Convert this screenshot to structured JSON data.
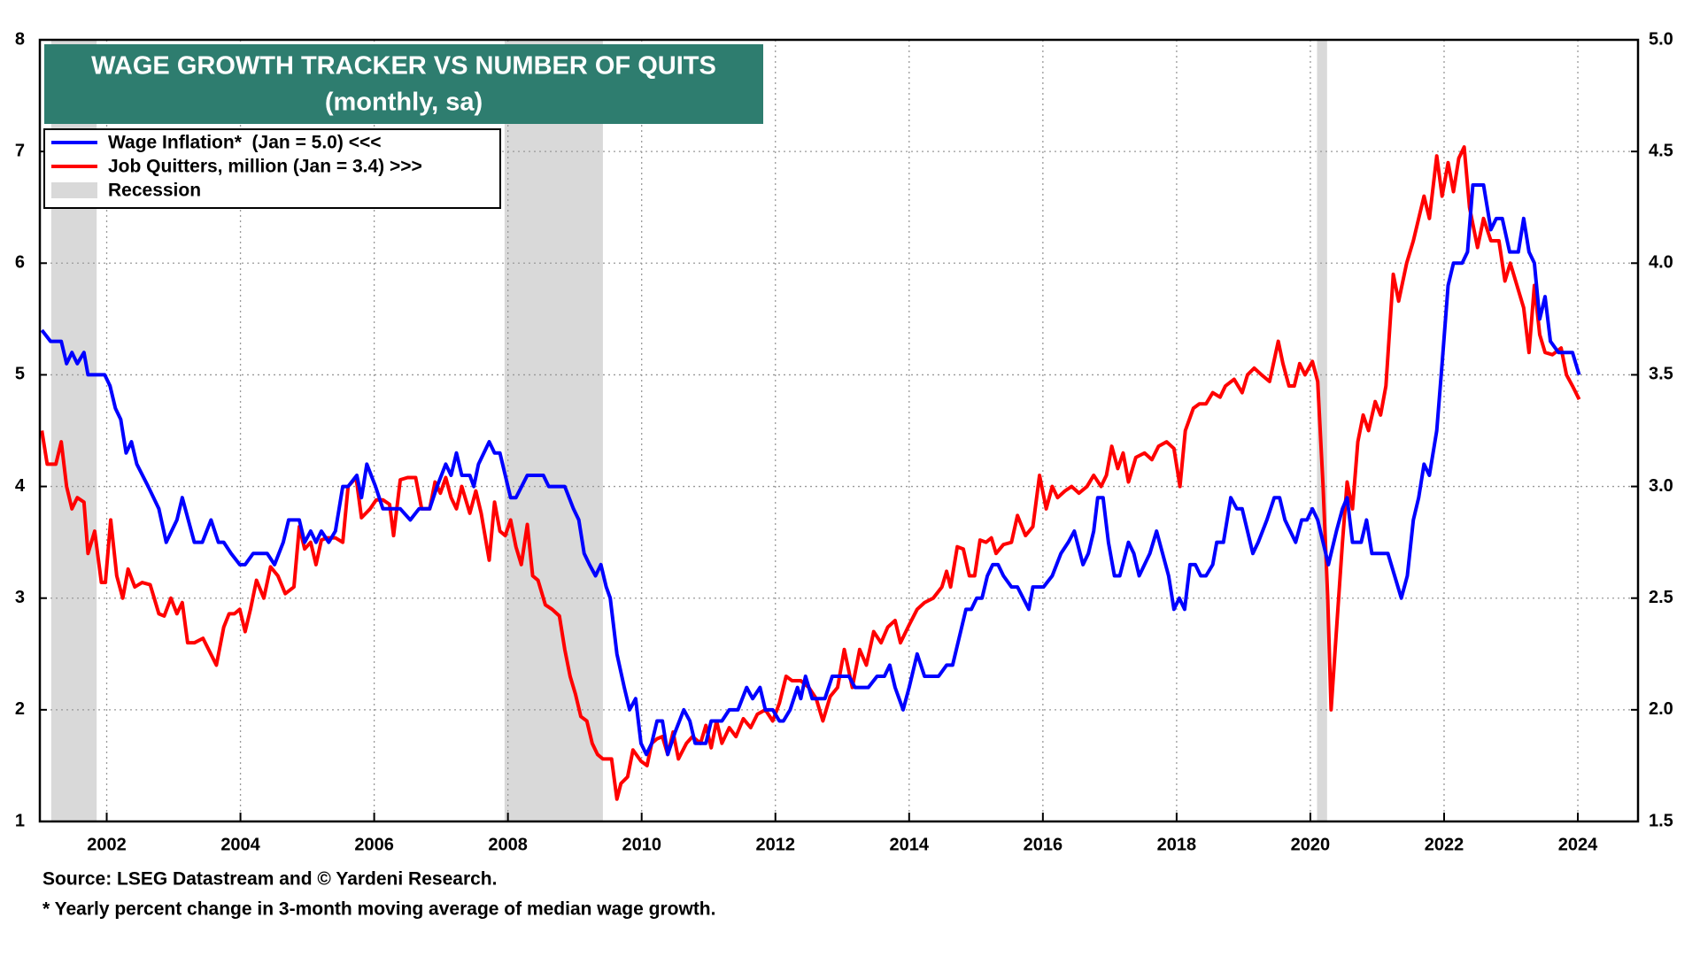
{
  "chart_data": {
    "type": "line",
    "title": "WAGE GROWTH TRACKER VS NUMBER OF QUITS",
    "subtitle": "(monthly, sa)",
    "source": "Source: LSEG Datastream and © Yardeni Research.",
    "footnote": "* Yearly percent change in 3-month moving average of median wage growth.",
    "xlim": [
      2001,
      2024.9
    ],
    "xticks": [
      2002,
      2004,
      2006,
      2008,
      2010,
      2012,
      2014,
      2016,
      2018,
      2020,
      2022,
      2024
    ],
    "ylim": [
      1,
      8
    ],
    "yticks": [
      1,
      2,
      3,
      4,
      5,
      6,
      7,
      8
    ],
    "y2lim": [
      1.5,
      5
    ],
    "y2ticks": [
      {
        "value": 1.5,
        "label": "1.5"
      },
      {
        "value": 2,
        "label": "2.0"
      },
      {
        "value": 2.5,
        "label": "2.5"
      },
      {
        "value": 3,
        "label": "3.0"
      },
      {
        "value": 3.5,
        "label": "3.5"
      },
      {
        "value": 4,
        "label": "4.0"
      },
      {
        "value": 4.5,
        "label": "4.5"
      },
      {
        "value": 5,
        "label": "5.0"
      }
    ],
    "grid": true,
    "legend": "upper left",
    "recessions": {
      "name": "Recession",
      "color": "#d9d9d9",
      "ranges": [
        [
          2001.17,
          2001.85
        ],
        [
          2007.95,
          2009.42
        ],
        [
          2020.1,
          2020.25
        ]
      ]
    },
    "series": [
      {
        "name": "Wage Inflation*  (Jan = 5.0) <<<",
        "color": "#0000ff",
        "axis": "y",
        "x": [
          2001.03,
          2001.16,
          2001.32,
          2001.4,
          2001.48,
          2001.56,
          2001.66,
          2001.72,
          2001.97,
          2002.05,
          2002.13,
          2002.21,
          2002.29,
          2002.37,
          2002.45,
          2002.62,
          2002.78,
          2002.89,
          2003.05,
          2003.13,
          2003.31,
          2003.43,
          2003.56,
          2003.67,
          2003.75,
          2003.86,
          2003.99,
          2004.07,
          2004.19,
          2004.4,
          2004.51,
          2004.64,
          2004.72,
          2004.88,
          2004.96,
          2005.05,
          2005.13,
          2005.21,
          2005.32,
          2005.42,
          2005.53,
          2005.61,
          2005.74,
          2005.81,
          2005.89,
          2006.02,
          2006.13,
          2006.26,
          2006.39,
          2006.54,
          2006.67,
          2006.83,
          2006.94,
          2007.07,
          2007.15,
          2007.23,
          2007.31,
          2007.43,
          2007.49,
          2007.56,
          2007.72,
          2007.8,
          2007.88,
          2008.04,
          2008.12,
          2008.29,
          2008.53,
          2008.61,
          2008.85,
          2008.98,
          2009.06,
          2009.14,
          2009.22,
          2009.31,
          2009.39,
          2009.47,
          2009.53,
          2009.63,
          2009.74,
          2009.82,
          2009.91,
          2009.99,
          2010.07,
          2010.15,
          2010.23,
          2010.31,
          2010.39,
          2010.5,
          2010.63,
          2010.72,
          2010.8,
          2010.96,
          2011.04,
          2011.2,
          2011.31,
          2011.44,
          2011.57,
          2011.66,
          2011.77,
          2011.85,
          2011.96,
          2012.06,
          2012.12,
          2012.22,
          2012.33,
          2012.38,
          2012.45,
          2012.55,
          2012.74,
          2012.85,
          2012.98,
          2013.1,
          2013.19,
          2013.39,
          2013.52,
          2013.63,
          2013.71,
          2013.79,
          2013.91,
          2014,
          2014.12,
          2014.23,
          2014.44,
          2014.56,
          2014.65,
          2014.77,
          2014.85,
          2014.93,
          2015.01,
          2015.09,
          2015.17,
          2015.25,
          2015.33,
          2015.41,
          2015.53,
          2015.62,
          2015.79,
          2015.85,
          2016.01,
          2016.14,
          2016.27,
          2016.38,
          2016.47,
          2016.6,
          2016.68,
          2016.76,
          2016.82,
          2016.9,
          2016.98,
          2017.07,
          2017.15,
          2017.28,
          2017.36,
          2017.44,
          2017.6,
          2017.7,
          2017.88,
          2017.96,
          2018.04,
          2018.12,
          2018.2,
          2018.28,
          2018.36,
          2018.44,
          2018.54,
          2018.6,
          2018.7,
          2018.81,
          2018.9,
          2018.98,
          2019.14,
          2019.22,
          2019.35,
          2019.46,
          2019.54,
          2019.62,
          2019.78,
          2019.87,
          2019.95,
          2020.03,
          2020.11,
          2020.19,
          2020.27,
          2020.39,
          2020.48,
          2020.55,
          2020.63,
          2020.76,
          2020.84,
          2020.92,
          2021.16,
          2021.26,
          2021.36,
          2021.45,
          2021.54,
          2021.62,
          2021.7,
          2021.78,
          2021.89,
          2021.97,
          2022.06,
          2022.14,
          2022.27,
          2022.35,
          2022.43,
          2022.59,
          2022.7,
          2022.78,
          2022.87,
          2022.98,
          2023.11,
          2023.19,
          2023.27,
          2023.35,
          2023.43,
          2023.51,
          2023.59,
          2023.71,
          2023.92,
          2024.02
        ],
        "values": [
          5.4,
          5.3,
          5.3,
          5.1,
          5.2,
          5.1,
          5.2,
          5.0,
          5.0,
          4.9,
          4.7,
          4.6,
          4.3,
          4.4,
          4.2,
          4.0,
          3.8,
          3.5,
          3.7,
          3.9,
          3.5,
          3.5,
          3.7,
          3.5,
          3.5,
          3.4,
          3.3,
          3.3,
          3.4,
          3.4,
          3.3,
          3.5,
          3.7,
          3.7,
          3.5,
          3.6,
          3.5,
          3.6,
          3.5,
          3.6,
          4.0,
          4.0,
          4.1,
          3.9,
          4.2,
          4.0,
          3.8,
          3.8,
          3.8,
          3.7,
          3.8,
          3.8,
          4.0,
          4.2,
          4.1,
          4.3,
          4.1,
          4.1,
          4.0,
          4.2,
          4.4,
          4.3,
          4.3,
          3.9,
          3.9,
          4.1,
          4.1,
          4.0,
          4.0,
          3.8,
          3.7,
          3.4,
          3.3,
          3.2,
          3.3,
          3.1,
          3.0,
          2.5,
          2.2,
          2.0,
          2.1,
          1.7,
          1.6,
          1.7,
          1.9,
          1.9,
          1.6,
          1.8,
          2.0,
          1.9,
          1.7,
          1.7,
          1.9,
          1.9,
          2.0,
          2.0,
          2.2,
          2.1,
          2.2,
          2.0,
          2.0,
          1.9,
          1.9,
          2.0,
          2.2,
          2.1,
          2.3,
          2.1,
          2.1,
          2.3,
          2.3,
          2.3,
          2.2,
          2.2,
          2.3,
          2.3,
          2.4,
          2.2,
          2.0,
          2.2,
          2.5,
          2.3,
          2.3,
          2.4,
          2.4,
          2.7,
          2.9,
          2.9,
          3.0,
          3.0,
          3.2,
          3.3,
          3.3,
          3.2,
          3.1,
          3.1,
          2.9,
          3.1,
          3.1,
          3.2,
          3.4,
          3.5,
          3.6,
          3.3,
          3.4,
          3.6,
          3.9,
          3.9,
          3.5,
          3.2,
          3.2,
          3.5,
          3.4,
          3.2,
          3.4,
          3.6,
          3.2,
          2.9,
          3.0,
          2.9,
          3.3,
          3.3,
          3.2,
          3.2,
          3.3,
          3.5,
          3.5,
          3.9,
          3.8,
          3.8,
          3.4,
          3.5,
          3.7,
          3.9,
          3.9,
          3.7,
          3.5,
          3.7,
          3.7,
          3.8,
          3.7,
          3.5,
          3.3,
          3.6,
          3.8,
          3.9,
          3.5,
          3.5,
          3.7,
          3.4,
          3.4,
          3.2,
          3.0,
          3.2,
          3.7,
          3.9,
          4.2,
          4.1,
          4.5,
          5.1,
          5.8,
          6.0,
          6.0,
          6.1,
          6.7,
          6.7,
          6.3,
          6.4,
          6.4,
          6.1,
          6.1,
          6.4,
          6.1,
          6.0,
          5.5,
          5.7,
          5.3,
          5.2,
          5.2,
          5.0
        ]
      },
      {
        "name": "Job Quitters, million (Jan = 3.4) >>>",
        "color": "#ff0000",
        "axis": "y2",
        "x": [
          2001.03,
          2001.11,
          2001.24,
          2001.32,
          2001.4,
          2001.48,
          2001.56,
          2001.66,
          2001.72,
          2001.82,
          2001.92,
          2001.98,
          2002.06,
          2002.15,
          2002.24,
          2002.32,
          2002.42,
          2002.53,
          2002.65,
          2002.78,
          2002.86,
          2002.96,
          2003.05,
          2003.13,
          2003.21,
          2003.31,
          2003.44,
          2003.54,
          2003.64,
          2003.75,
          2003.83,
          2003.91,
          2003.99,
          2004.07,
          2004.15,
          2004.24,
          2004.35,
          2004.45,
          2004.56,
          2004.67,
          2004.8,
          2004.88,
          2004.96,
          2005.05,
          2005.13,
          2005.21,
          2005.29,
          2005.42,
          2005.53,
          2005.61,
          2005.73,
          2005.81,
          2005.94,
          2006.03,
          2006.13,
          2006.23,
          2006.29,
          2006.39,
          2006.5,
          2006.62,
          2006.71,
          2006.83,
          2006.91,
          2006.99,
          2007.07,
          2007.15,
          2007.23,
          2007.31,
          2007.43,
          2007.52,
          2007.6,
          2007.72,
          2007.8,
          2007.88,
          2007.96,
          2008.04,
          2008.12,
          2008.2,
          2008.29,
          2008.37,
          2008.45,
          2008.56,
          2008.66,
          2008.77,
          2008.85,
          2008.93,
          2009.01,
          2009.09,
          2009.18,
          2009.26,
          2009.34,
          2009.42,
          2009.55,
          2009.63,
          2009.69,
          2009.79,
          2009.87,
          2009.99,
          2010.08,
          2010.15,
          2010.23,
          2010.31,
          2010.39,
          2010.47,
          2010.55,
          2010.67,
          2010.76,
          2010.88,
          2010.96,
          2011.04,
          2011.12,
          2011.2,
          2011.31,
          2011.41,
          2011.52,
          2011.63,
          2011.73,
          2011.85,
          2011.96,
          2012.06,
          2012.16,
          2012.25,
          2012.38,
          2012.5,
          2012.61,
          2012.71,
          2012.82,
          2012.93,
          2013.03,
          2013.15,
          2013.26,
          2013.36,
          2013.47,
          2013.58,
          2013.68,
          2013.79,
          2013.87,
          2014,
          2014.12,
          2014.23,
          2014.36,
          2014.49,
          2014.56,
          2014.62,
          2014.72,
          2014.81,
          2014.9,
          2014.98,
          2015.06,
          2015.15,
          2015.23,
          2015.3,
          2015.41,
          2015.53,
          2015.62,
          2015.74,
          2015.85,
          2015.95,
          2016.05,
          2016.14,
          2016.22,
          2016.33,
          2016.43,
          2016.54,
          2016.66,
          2016.76,
          2016.87,
          2016.95,
          2017.03,
          2017.12,
          2017.2,
          2017.28,
          2017.39,
          2017.52,
          2017.63,
          2017.73,
          2017.85,
          2017.96,
          2018.05,
          2018.13,
          2018.25,
          2018.34,
          2018.44,
          2018.54,
          2018.65,
          2018.73,
          2018.86,
          2018.98,
          2019.06,
          2019.16,
          2019.27,
          2019.39,
          2019.52,
          2019.59,
          2019.68,
          2019.76,
          2019.84,
          2019.92,
          2020.03,
          2020.11,
          2020.19,
          2020.26,
          2020.31,
          2020.4,
          2020.48,
          2020.55,
          2020.63,
          2020.71,
          2020.79,
          2020.87,
          2020.97,
          2021.05,
          2021.13,
          2021.24,
          2021.32,
          2021.44,
          2021.54,
          2021.62,
          2021.7,
          2021.78,
          2021.89,
          2021.97,
          2022.06,
          2022.14,
          2022.22,
          2022.3,
          2022.38,
          2022.5,
          2022.59,
          2022.7,
          2022.82,
          2022.91,
          2022.99,
          2023.11,
          2023.19,
          2023.27,
          2023.35,
          2023.43,
          2023.51,
          2023.62,
          2023.75,
          2023.83,
          2023.92,
          2024.02
        ],
        "values": [
          3.25,
          3.1,
          3.1,
          3.2,
          3.0,
          2.9,
          2.95,
          2.93,
          2.7,
          2.8,
          2.57,
          2.57,
          2.85,
          2.6,
          2.5,
          2.63,
          2.55,
          2.57,
          2.56,
          2.43,
          2.42,
          2.5,
          2.43,
          2.48,
          2.3,
          2.3,
          2.32,
          2.26,
          2.2,
          2.37,
          2.43,
          2.43,
          2.45,
          2.35,
          2.45,
          2.58,
          2.5,
          2.64,
          2.6,
          2.52,
          2.55,
          2.82,
          2.72,
          2.75,
          2.65,
          2.76,
          2.77,
          2.77,
          2.75,
          3.0,
          3.04,
          2.86,
          2.9,
          2.94,
          2.94,
          2.92,
          2.78,
          3.03,
          3.04,
          3.04,
          2.9,
          2.9,
          3.02,
          2.97,
          3.04,
          2.95,
          2.9,
          3.0,
          2.88,
          2.98,
          2.88,
          2.67,
          2.93,
          2.8,
          2.78,
          2.85,
          2.73,
          2.65,
          2.83,
          2.6,
          2.58,
          2.47,
          2.45,
          2.42,
          2.27,
          2.15,
          2.07,
          1.97,
          1.95,
          1.85,
          1.8,
          1.78,
          1.78,
          1.6,
          1.67,
          1.7,
          1.82,
          1.77,
          1.75,
          1.85,
          1.87,
          1.88,
          1.8,
          1.9,
          1.78,
          1.85,
          1.88,
          1.85,
          1.93,
          1.83,
          1.95,
          1.85,
          1.92,
          1.88,
          1.96,
          1.92,
          1.98,
          2.0,
          1.95,
          2.03,
          2.15,
          2.13,
          2.13,
          2.1,
          2.05,
          1.95,
          2.06,
          2.1,
          2.27,
          2.1,
          2.27,
          2.2,
          2.35,
          2.3,
          2.37,
          2.4,
          2.3,
          2.38,
          2.45,
          2.48,
          2.5,
          2.55,
          2.62,
          2.55,
          2.73,
          2.72,
          2.6,
          2.6,
          2.76,
          2.75,
          2.77,
          2.7,
          2.74,
          2.75,
          2.87,
          2.78,
          2.82,
          3.05,
          2.9,
          3.0,
          2.95,
          2.98,
          3.0,
          2.97,
          3.0,
          3.05,
          3.0,
          3.05,
          3.18,
          3.08,
          3.15,
          3.02,
          3.13,
          3.15,
          3.12,
          3.18,
          3.2,
          3.17,
          3.0,
          3.25,
          3.35,
          3.37,
          3.37,
          3.42,
          3.4,
          3.45,
          3.48,
          3.42,
          3.5,
          3.53,
          3.5,
          3.47,
          3.65,
          3.55,
          3.45,
          3.45,
          3.55,
          3.5,
          3.56,
          3.47,
          3.0,
          2.5,
          2.0,
          2.4,
          2.75,
          3.02,
          2.9,
          3.2,
          3.32,
          3.25,
          3.38,
          3.32,
          3.45,
          3.95,
          3.83,
          4.0,
          4.1,
          4.2,
          4.3,
          4.2,
          4.48,
          4.3,
          4.45,
          4.32,
          4.47,
          4.52,
          4.25,
          4.07,
          4.2,
          4.1,
          4.1,
          3.92,
          4.0,
          3.88,
          3.8,
          3.6,
          3.9,
          3.68,
          3.6,
          3.59,
          3.62,
          3.5,
          3.45,
          3.39
        ]
      }
    ]
  }
}
